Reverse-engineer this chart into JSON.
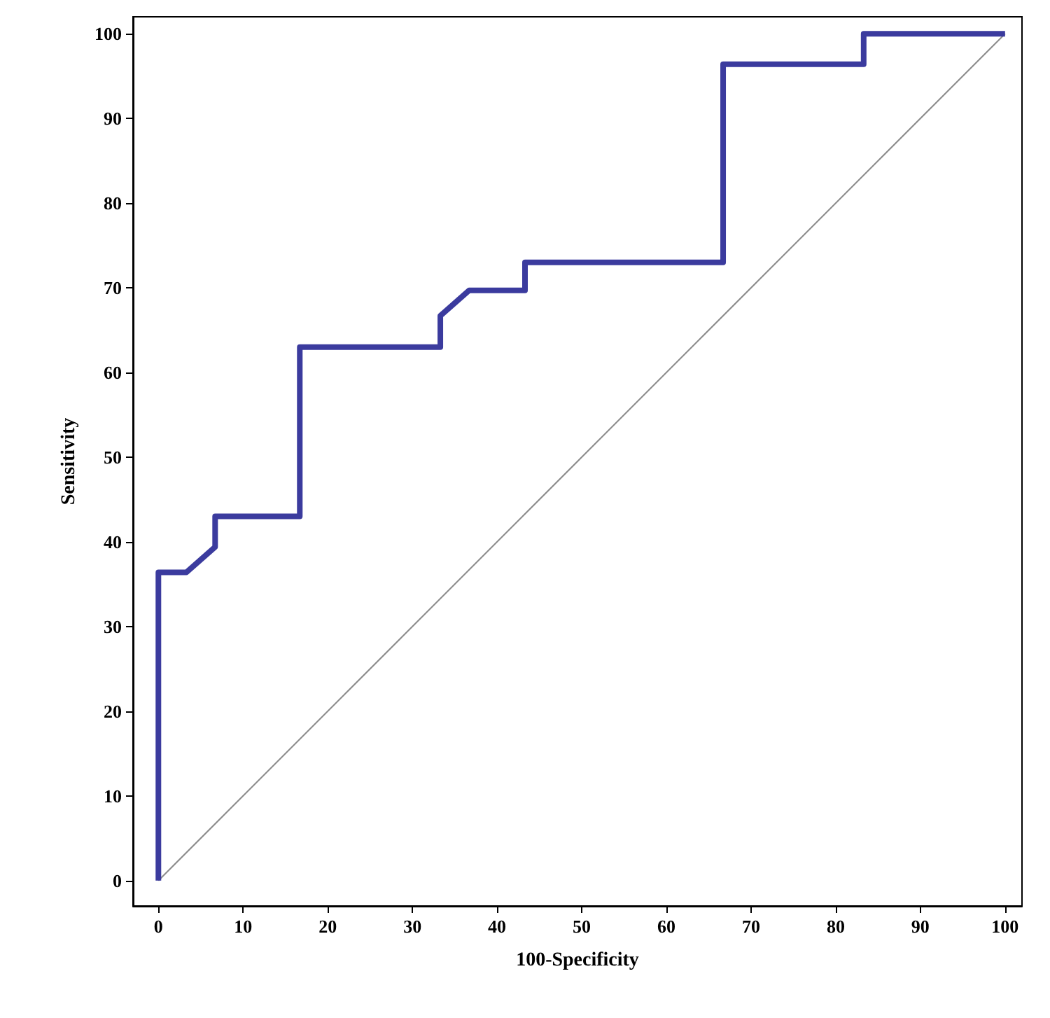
{
  "chart_data": {
    "type": "line",
    "xlabel": "100-Specificity",
    "ylabel": "Sensitivity",
    "xlim": [
      -3,
      102
    ],
    "ylim": [
      -3,
      102
    ],
    "xticks": [
      0,
      10,
      20,
      30,
      40,
      50,
      60,
      70,
      80,
      90,
      100
    ],
    "yticks": [
      0,
      10,
      20,
      30,
      40,
      50,
      60,
      70,
      80,
      90,
      100
    ],
    "marker": "none",
    "series": [
      {
        "color": "#3b3b9e",
        "x": [
          0,
          0,
          3.3,
          6.7,
          6.7,
          16.7,
          16.7,
          33.3,
          33.3,
          36.7,
          43.3,
          43.3,
          66.7,
          66.7,
          83.3,
          83.3,
          100
        ],
        "values": [
          0,
          36.4,
          36.4,
          39.4,
          43,
          43,
          63,
          63,
          66.7,
          69.7,
          69.7,
          73,
          73,
          96.4,
          96.4,
          100,
          100
        ],
        "line_style": "solid"
      },
      {
        "color": "#8a8a8a",
        "x": [
          0,
          100
        ],
        "values": [
          0,
          100
        ],
        "line_style": "solid"
      }
    ]
  }
}
